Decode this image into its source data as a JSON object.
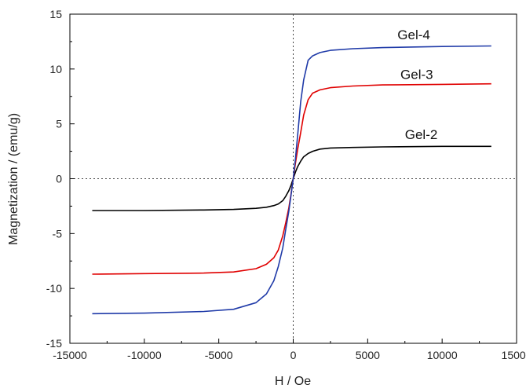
{
  "chart_data": {
    "type": "line",
    "title": "",
    "xlabel": "H / Oe",
    "ylabel": "Magnetization / (emu/g)",
    "xlim": [
      -15000,
      15000
    ],
    "ylim": [
      -15,
      15
    ],
    "xticks": [
      -15000,
      -10000,
      -5000,
      0,
      5000,
      10000,
      15000
    ],
    "yticks": [
      -15,
      -10,
      -5,
      0,
      5,
      10,
      15
    ],
    "x_tick_labels": [
      "-15000",
      "-10000",
      "-5000",
      "0",
      "5000",
      "10000",
      "15000"
    ],
    "y_tick_labels": [
      "-15",
      "-10",
      "-5",
      "0",
      "5",
      "10",
      "15"
    ],
    "grid": false,
    "zero_lines": "dotted",
    "legend": "none (direct labels)",
    "series": [
      {
        "name": "Gel-2",
        "color": "#000000",
        "label_anchor": [
          7500,
          3.6
        ],
        "x": [
          -13500,
          -10000,
          -6000,
          -4000,
          -2500,
          -1800,
          -1300,
          -1000,
          -700,
          -500,
          -300,
          -150,
          0,
          150,
          300,
          500,
          700,
          1000,
          1300,
          1800,
          2500,
          4000,
          6000,
          10000,
          13300
        ],
        "y": [
          -2.9,
          -2.9,
          -2.85,
          -2.8,
          -2.7,
          -2.6,
          -2.45,
          -2.3,
          -2.0,
          -1.6,
          -1.1,
          -0.6,
          0,
          0.6,
          1.1,
          1.6,
          2.0,
          2.3,
          2.5,
          2.7,
          2.8,
          2.85,
          2.9,
          2.95,
          2.95
        ]
      },
      {
        "name": "Gel-3",
        "color": "#e00000",
        "label_anchor": [
          7200,
          9.1
        ],
        "x": [
          -13500,
          -10000,
          -6000,
          -4000,
          -2500,
          -1800,
          -1300,
          -1000,
          -700,
          -500,
          -300,
          -150,
          0,
          150,
          300,
          500,
          700,
          1000,
          1300,
          1800,
          2500,
          4000,
          6000,
          10000,
          13300
        ],
        "y": [
          -8.7,
          -8.65,
          -8.6,
          -8.5,
          -8.2,
          -7.8,
          -7.2,
          -6.5,
          -5.2,
          -4.0,
          -2.7,
          -1.4,
          0,
          1.4,
          2.7,
          4.2,
          5.8,
          7.2,
          7.8,
          8.1,
          8.3,
          8.45,
          8.55,
          8.6,
          8.65
        ]
      },
      {
        "name": "Gel-4",
        "color": "#1f3aa8",
        "label_anchor": [
          7000,
          12.7
        ],
        "x": [
          -13500,
          -10000,
          -6000,
          -4000,
          -2500,
          -1800,
          -1300,
          -1000,
          -700,
          -500,
          -300,
          -150,
          0,
          150,
          300,
          500,
          700,
          1000,
          1300,
          1800,
          2500,
          4000,
          6000,
          10000,
          13300
        ],
        "y": [
          -12.3,
          -12.25,
          -12.1,
          -11.9,
          -11.3,
          -10.5,
          -9.3,
          -8.0,
          -6.3,
          -4.6,
          -3.0,
          -1.5,
          0,
          1.8,
          4.0,
          7.0,
          9.0,
          10.8,
          11.2,
          11.5,
          11.7,
          11.85,
          11.95,
          12.05,
          12.1
        ]
      }
    ]
  }
}
